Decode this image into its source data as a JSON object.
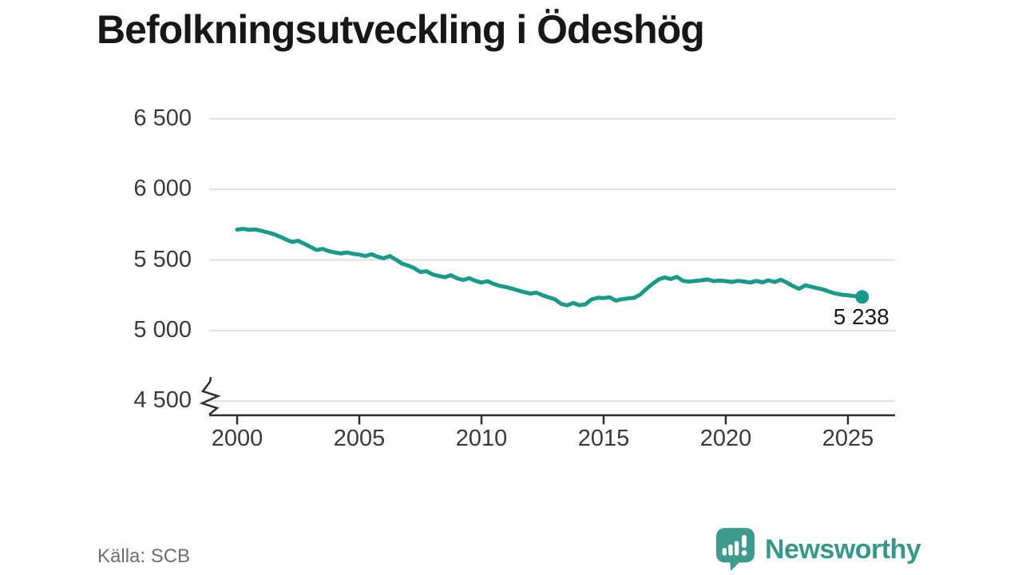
{
  "title": "Befolkningsutveckling i Ödeshög",
  "source": "Källa: SCB",
  "brand": {
    "name": "Newsworthy",
    "icon_color": "#3d9b8e",
    "text_color": "#35988b"
  },
  "colors": {
    "line": "#189b8b",
    "grid": "#e0e0e0",
    "axis": "#2f2f2f",
    "tick_text": "#3a3a3a",
    "title_text": "#171717",
    "source_text": "#6e6e6e"
  },
  "chart_data": {
    "type": "line",
    "title": "Befolkningsutveckling i Ödeshög",
    "source": "Källa: SCB",
    "xlabel": "",
    "ylabel": "",
    "grid": "horizontal",
    "legend": "none",
    "y_axis_break": true,
    "xlim": [
      1998.9,
      2026.9
    ],
    "ylim": [
      4500,
      6500
    ],
    "x_ticks": [
      2000,
      2005,
      2010,
      2015,
      2020,
      2025
    ],
    "y_ticks": [
      {
        "value": 6500,
        "label": "6 500"
      },
      {
        "value": 6000,
        "label": "6 000"
      },
      {
        "value": 5500,
        "label": "5 500"
      },
      {
        "value": 5000,
        "label": "5 000"
      },
      {
        "value": 4500,
        "label": "4 500"
      }
    ],
    "annotations": [
      {
        "x": 2025.58,
        "y": 5238,
        "label": "5 238"
      }
    ],
    "series": [
      {
        "name": "Befolkning",
        "color": "#189b8b",
        "x": [
          2000,
          2000.25,
          2000.5,
          2000.75,
          2001,
          2001.25,
          2001.5,
          2001.75,
          2002,
          2002.25,
          2002.5,
          2002.75,
          2003,
          2003.25,
          2003.5,
          2003.75,
          2004,
          2004.25,
          2004.5,
          2004.75,
          2005,
          2005.25,
          2005.5,
          2005.75,
          2006,
          2006.25,
          2006.5,
          2006.75,
          2007,
          2007.25,
          2007.5,
          2007.75,
          2008,
          2008.25,
          2008.5,
          2008.75,
          2009,
          2009.25,
          2009.5,
          2009.75,
          2010,
          2010.25,
          2010.5,
          2010.75,
          2011,
          2011.25,
          2011.5,
          2011.75,
          2012,
          2012.25,
          2012.5,
          2012.75,
          2013,
          2013.25,
          2013.5,
          2013.75,
          2014,
          2014.25,
          2014.5,
          2014.75,
          2015,
          2015.25,
          2015.5,
          2015.75,
          2016,
          2016.25,
          2016.5,
          2016.75,
          2017,
          2017.25,
          2017.5,
          2017.75,
          2018,
          2018.25,
          2018.5,
          2018.75,
          2019,
          2019.25,
          2019.5,
          2019.75,
          2020,
          2020.25,
          2020.5,
          2020.75,
          2021,
          2021.25,
          2021.5,
          2021.75,
          2022,
          2022.25,
          2022.5,
          2022.75,
          2023,
          2023.25,
          2023.5,
          2023.75,
          2024,
          2024.25,
          2024.5,
          2024.75,
          2025,
          2025.25,
          2025.58
        ],
        "values": [
          5715,
          5720,
          5713,
          5716,
          5706,
          5695,
          5683,
          5665,
          5645,
          5628,
          5636,
          5615,
          5593,
          5570,
          5578,
          5562,
          5553,
          5546,
          5553,
          5543,
          5538,
          5528,
          5540,
          5522,
          5512,
          5528,
          5502,
          5474,
          5460,
          5442,
          5414,
          5420,
          5398,
          5386,
          5378,
          5392,
          5370,
          5358,
          5371,
          5352,
          5340,
          5350,
          5330,
          5316,
          5308,
          5297,
          5284,
          5272,
          5262,
          5268,
          5250,
          5235,
          5222,
          5190,
          5178,
          5195,
          5180,
          5185,
          5220,
          5232,
          5230,
          5235,
          5212,
          5222,
          5228,
          5232,
          5255,
          5295,
          5330,
          5362,
          5376,
          5365,
          5380,
          5352,
          5346,
          5352,
          5356,
          5362,
          5350,
          5354,
          5350,
          5344,
          5352,
          5347,
          5340,
          5352,
          5341,
          5356,
          5344,
          5360,
          5340,
          5315,
          5296,
          5320,
          5310,
          5300,
          5290,
          5274,
          5262,
          5254,
          5250,
          5244,
          5238
        ]
      }
    ]
  }
}
